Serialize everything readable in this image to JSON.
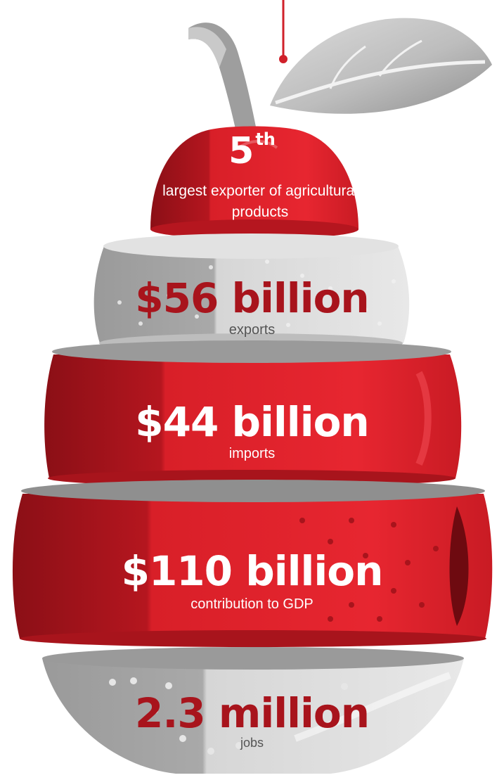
{
  "rank": {
    "number": "5",
    "suffix": "th",
    "description": "largest exporter of agricultural products"
  },
  "stats": [
    {
      "value": "$56 billion",
      "label": "exports"
    },
    {
      "value": "$44 billion",
      "label": "imports"
    },
    {
      "value": "$110 billion",
      "label": "contribution to GDP"
    },
    {
      "value": "2.3 million",
      "label": "jobs"
    }
  ],
  "colors": {
    "red": "#e0202a",
    "dark_red": "#a8141c",
    "gray": "#c9c9c9",
    "dark_gray": "#8f8f8f",
    "white": "#ffffff"
  },
  "icons": {
    "pear": "pear-illustration-icon",
    "leaf": "leaf-icon",
    "stem": "stem-icon"
  }
}
